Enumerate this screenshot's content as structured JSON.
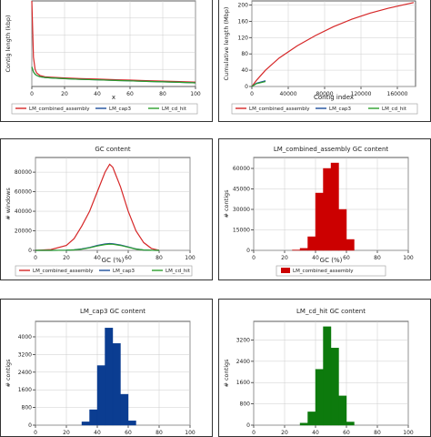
{
  "chart_data": [
    {
      "type": "line",
      "title": "",
      "xlabel": "x",
      "ylabel": "Contig length (kbp)",
      "xticks": [
        "0",
        "20",
        "40",
        "60",
        "80",
        "100"
      ],
      "yticks": [],
      "xlim": [
        0,
        100
      ],
      "ylim": [
        0,
        35
      ],
      "grid": true,
      "x": [
        0,
        1,
        2,
        3,
        5,
        8,
        12,
        20,
        30,
        40,
        50,
        60,
        70,
        80,
        90,
        100
      ],
      "series": [
        {
          "name": "LM_combined_assembly",
          "color": "#d62728",
          "values": [
            35,
            12,
            7,
            5.5,
            4.5,
            4,
            3.8,
            3.5,
            3.2,
            3.0,
            2.8,
            2.6,
            2.4,
            2.2,
            2.0,
            1.8
          ]
        },
        {
          "name": "LM_cap3",
          "color": "#1f4e9c",
          "values": [
            8,
            6,
            5,
            4.5,
            4,
            3.7,
            3.5,
            3.2,
            2.9,
            2.7,
            2.5,
            2.3,
            2.1,
            1.9,
            1.7,
            1.5
          ]
        },
        {
          "name": "LM_cd_hit",
          "color": "#2ca02c",
          "values": [
            8,
            6,
            5,
            4.5,
            4,
            3.7,
            3.5,
            3.2,
            2.9,
            2.7,
            2.5,
            2.3,
            2.1,
            1.9,
            1.7,
            1.5
          ]
        }
      ]
    },
    {
      "type": "line",
      "title": "",
      "xlabel": "Contig index",
      "ylabel": "Cumulative length (Mbp)",
      "xticks": [
        "0",
        "40000",
        "80000",
        "120000",
        "160000"
      ],
      "yticks": [
        "0",
        "40",
        "80",
        "120",
        "160",
        "200"
      ],
      "xlim": [
        0,
        180000
      ],
      "ylim": [
        0,
        210
      ],
      "grid": true,
      "x": [
        0,
        5000,
        15000,
        30000,
        50000,
        70000,
        90000,
        110000,
        130000,
        150000,
        170000,
        178000
      ],
      "series": [
        {
          "name": "LM_combined_assembly",
          "color": "#d62728",
          "values": [
            0,
            15,
            40,
            70,
            100,
            125,
            147,
            165,
            180,
            192,
            202,
            206
          ]
        },
        {
          "name": "LM_cap3",
          "color": "#1f4e9c",
          "values": [
            0,
            8,
            14,
            null,
            null,
            null,
            null,
            null,
            null,
            null,
            null,
            null
          ]
        },
        {
          "name": "LM_cd_hit",
          "color": "#2ca02c",
          "values": [
            0,
            7,
            12,
            null,
            null,
            null,
            null,
            null,
            null,
            null,
            null,
            null
          ]
        }
      ]
    },
    {
      "type": "line",
      "title": "GC content",
      "xlabel": "GC (%)",
      "ylabel": "# windows",
      "xticks": [
        "0",
        "20",
        "40",
        "60",
        "80",
        "100"
      ],
      "yticks": [
        "0",
        "20000",
        "40000",
        "60000",
        "80000"
      ],
      "xlim": [
        0,
        100
      ],
      "ylim": [
        0,
        95000
      ],
      "grid": true,
      "x": [
        0,
        10,
        20,
        25,
        30,
        35,
        40,
        45,
        48,
        50,
        55,
        60,
        65,
        70,
        75,
        80
      ],
      "series": [
        {
          "name": "LM_combined_assembly",
          "color": "#d62728",
          "values": [
            0,
            800,
            5000,
            12000,
            25000,
            40000,
            60000,
            80000,
            88000,
            85000,
            65000,
            40000,
            20000,
            8000,
            2000,
            0
          ]
        },
        {
          "name": "LM_cap3",
          "color": "#1f4e9c",
          "values": [
            0,
            0,
            200,
            600,
            1500,
            3000,
            5000,
            6500,
            7000,
            6800,
            5500,
            3500,
            1500,
            400,
            100,
            0
          ]
        },
        {
          "name": "LM_cd_hit",
          "color": "#2ca02c",
          "values": [
            0,
            0,
            150,
            500,
            1200,
            2600,
            4500,
            6000,
            6400,
            6200,
            5000,
            3200,
            1300,
            350,
            80,
            0
          ]
        }
      ]
    },
    {
      "type": "bar",
      "title": "LM_combined_assembly GC content",
      "xlabel": "GC (%)",
      "ylabel": "# contigs",
      "xticks": [
        "0",
        "20",
        "40",
        "60",
        "80",
        "100"
      ],
      "yticks": [
        "0",
        "15000",
        "30000",
        "45000",
        "60000"
      ],
      "xlim": [
        0,
        100
      ],
      "ylim": [
        0,
        68000
      ],
      "grid": true,
      "bin_edges": [
        25,
        30,
        35,
        40,
        45,
        50,
        55,
        60,
        65
      ],
      "values": [
        300,
        1500,
        10000,
        42000,
        60000,
        64000,
        30000,
        8000
      ],
      "color": "#cc0000",
      "legend": "LM_combined_assembly"
    },
    {
      "type": "bar",
      "title": "LM_cap3 GC content",
      "xlabel": "",
      "ylabel": "# contigs",
      "xticks": [
        "0",
        "20",
        "40",
        "60",
        "80",
        "100"
      ],
      "yticks": [
        "0",
        "800",
        "1600",
        "2400",
        "3200",
        "4000"
      ],
      "xlim": [
        0,
        100
      ],
      "ylim": [
        0,
        4700
      ],
      "grid": true,
      "bin_edges": [
        30,
        35,
        40,
        45,
        50,
        55,
        60,
        65
      ],
      "values": [
        150,
        700,
        2700,
        4400,
        3700,
        1400,
        200
      ],
      "color": "#0b3d91"
    },
    {
      "type": "bar",
      "title": "LM_cd_hit GC content",
      "xlabel": "",
      "ylabel": "# contigs",
      "xticks": [
        "0",
        "20",
        "40",
        "60",
        "80",
        "100"
      ],
      "yticks": [
        "0",
        "800",
        "1600",
        "2400",
        "3200"
      ],
      "xlim": [
        0,
        100
      ],
      "ylim": [
        0,
        3900
      ],
      "grid": true,
      "bin_edges": [
        30,
        35,
        40,
        45,
        50,
        55,
        60,
        65
      ],
      "values": [
        80,
        500,
        2100,
        3700,
        2900,
        1100,
        120
      ],
      "color": "#0d7a0d"
    }
  ]
}
